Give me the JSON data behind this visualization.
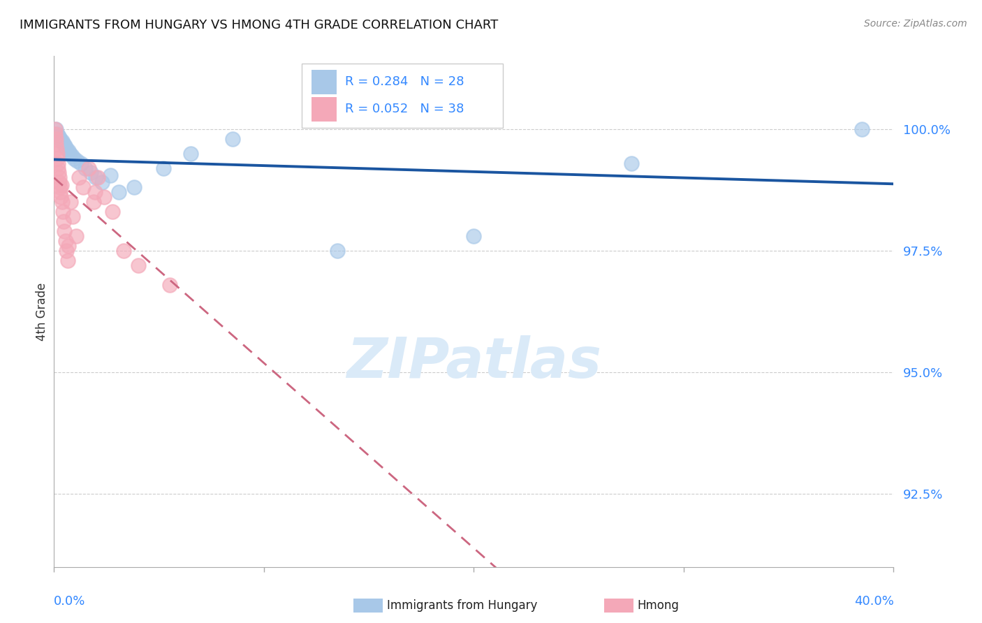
{
  "title": "IMMIGRANTS FROM HUNGARY VS HMONG 4TH GRADE CORRELATION CHART",
  "source": "Source: ZipAtlas.com",
  "ylabel": "4th Grade",
  "xlim": [
    0.0,
    40.0
  ],
  "ylim": [
    91.0,
    101.5
  ],
  "yticks": [
    100.0,
    97.5,
    95.0,
    92.5
  ],
  "ytick_labels": [
    "100.0%",
    "97.5%",
    "95.0%",
    "92.5%"
  ],
  "xtick_left_label": "0.0%",
  "xtick_right_label": "40.0%",
  "legend_r1": "R = 0.284",
  "legend_n1": "N = 28",
  "legend_r2": "R = 0.052",
  "legend_n2": "N = 38",
  "hungary_scatter_color": "#a8c8e8",
  "hmong_scatter_color": "#f4a8b8",
  "hungary_line_color": "#1a55a0",
  "hmong_line_color": "#cc6680",
  "bg_color": "#ffffff",
  "watermark_color": "#daeaf8",
  "bottom_legend_hungary": "Immigrants from Hungary",
  "bottom_legend_hmong": "Hmong",
  "hungary_x": [
    0.08,
    0.15,
    0.22,
    0.3,
    0.38,
    0.45,
    0.52,
    0.6,
    0.68,
    0.75,
    0.85,
    0.95,
    1.1,
    1.3,
    1.5,
    1.75,
    2.0,
    2.3,
    2.7,
    3.1,
    3.8,
    5.2,
    6.5,
    8.5,
    13.5,
    20.0,
    27.5,
    38.5
  ],
  "hungary_y": [
    100.0,
    99.9,
    99.85,
    99.8,
    99.75,
    99.7,
    99.65,
    99.6,
    99.55,
    99.5,
    99.45,
    99.4,
    99.35,
    99.3,
    99.2,
    99.1,
    99.0,
    98.9,
    99.05,
    98.7,
    98.8,
    99.2,
    99.5,
    99.8,
    97.5,
    97.8,
    99.3,
    100.0
  ],
  "hmong_x": [
    0.04,
    0.06,
    0.08,
    0.1,
    0.12,
    0.14,
    0.16,
    0.18,
    0.2,
    0.22,
    0.24,
    0.26,
    0.28,
    0.3,
    0.32,
    0.35,
    0.38,
    0.42,
    0.46,
    0.5,
    0.55,
    0.6,
    0.65,
    0.7,
    0.8,
    0.9,
    1.05,
    1.2,
    1.4,
    1.65,
    1.9,
    1.95,
    2.1,
    2.4,
    2.8,
    3.3,
    4.0,
    5.5
  ],
  "hmong_y": [
    100.0,
    99.9,
    99.8,
    99.7,
    99.6,
    99.5,
    99.4,
    99.3,
    99.2,
    99.1,
    99.0,
    98.9,
    98.8,
    98.7,
    98.6,
    98.85,
    98.5,
    98.3,
    98.1,
    97.9,
    97.7,
    97.5,
    97.3,
    97.6,
    98.5,
    98.2,
    97.8,
    99.0,
    98.8,
    99.2,
    98.5,
    98.7,
    99.0,
    98.6,
    98.3,
    97.5,
    97.2,
    96.8
  ]
}
